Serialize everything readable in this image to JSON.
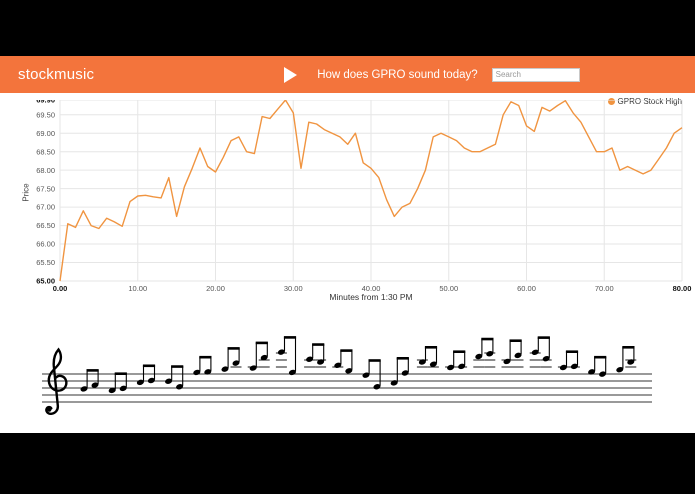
{
  "header": {
    "brand": "stockmusic",
    "question": "How does GPRO sound today?",
    "search_placeholder": "Search"
  },
  "chart_data": {
    "type": "line",
    "title": "",
    "xlabel": "Minutes from 1:30 PM",
    "ylabel": "Price",
    "xlim": [
      0,
      80
    ],
    "ylim": [
      65,
      69.9
    ],
    "grid": true,
    "legend": {
      "label": "GPRO Stock High",
      "position": "top-right"
    },
    "x_ticks": [
      0,
      10,
      20,
      30,
      40,
      50,
      60,
      70,
      80
    ],
    "x_tick_labels": [
      "0.00",
      "10.00",
      "20.00",
      "30.00",
      "40.00",
      "50.00",
      "60.00",
      "70.00",
      "80.00"
    ],
    "y_ticks": [
      65,
      65.5,
      66,
      66.5,
      67,
      67.5,
      68,
      68.5,
      69,
      69.5,
      69.9
    ],
    "y_tick_labels": [
      "65.00",
      "65.50",
      "66.00",
      "66.50",
      "67.00",
      "67.50",
      "68.00",
      "68.50",
      "69.00",
      "69.50",
      "69.90"
    ],
    "series": [
      {
        "name": "GPRO Stock High",
        "color": "#f09440",
        "x": [
          0,
          1,
          2,
          3,
          4,
          5,
          6,
          7,
          8,
          9,
          10,
          11,
          12,
          13,
          14,
          15,
          16,
          17,
          18,
          19,
          20,
          21,
          22,
          23,
          24,
          25,
          26,
          27,
          28,
          29,
          30,
          31,
          32,
          33,
          34,
          35,
          36,
          37,
          38,
          39,
          40,
          41,
          42,
          43,
          44,
          45,
          46,
          47,
          48,
          49,
          50,
          51,
          52,
          53,
          54,
          55,
          56,
          57,
          58,
          59,
          60,
          61,
          62,
          63,
          64,
          65,
          66,
          67,
          68,
          69,
          70,
          71,
          72,
          73,
          74,
          75,
          76,
          77,
          78,
          79,
          80
        ],
        "values": [
          65.0,
          66.55,
          66.45,
          66.9,
          66.5,
          66.42,
          66.7,
          66.6,
          66.48,
          67.15,
          67.3,
          67.32,
          67.28,
          67.25,
          67.8,
          66.75,
          67.55,
          68.05,
          68.6,
          68.1,
          67.95,
          68.35,
          68.8,
          68.9,
          68.5,
          68.45,
          69.45,
          69.4,
          69.65,
          69.9,
          69.55,
          68.05,
          69.3,
          69.25,
          69.1,
          69.0,
          68.9,
          68.7,
          69.0,
          68.2,
          68.05,
          67.8,
          67.2,
          66.75,
          67.0,
          67.1,
          67.5,
          68.0,
          68.9,
          69.0,
          68.9,
          68.8,
          68.6,
          68.5,
          68.5,
          68.6,
          68.7,
          69.5,
          69.85,
          69.75,
          69.2,
          69.05,
          69.7,
          69.6,
          69.75,
          69.88,
          69.55,
          69.3,
          68.9,
          68.5,
          68.5,
          68.6,
          68.0,
          68.1,
          68.0,
          67.9,
          68.0,
          68.3,
          68.6,
          69.0,
          69.15
        ]
      }
    ]
  },
  "music": {
    "clef": "treble"
  },
  "colors": {
    "header_bg": "#f3743c",
    "line": "#f09440",
    "grid": "#e6e6e6",
    "tick": "#555555",
    "tick_strong": "#111111",
    "legend_text": "#333333"
  }
}
